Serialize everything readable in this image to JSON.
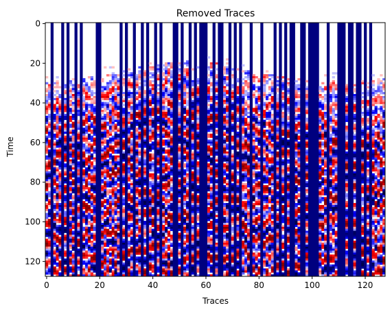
{
  "chart_data": {
    "type": "heatmap",
    "title": "Removed Traces",
    "xlabel": "Traces",
    "ylabel": "Time",
    "xlim": [
      0,
      127
    ],
    "ylim": [
      127,
      0
    ],
    "x_ticks": [
      0,
      20,
      40,
      60,
      80,
      100,
      120
    ],
    "y_ticks": [
      0,
      20,
      40,
      60,
      80,
      100,
      120
    ],
    "colormap": "seismic",
    "colors": {
      "negative": "#00007f",
      "zero": "#ffffff",
      "positive": "#7f0000"
    },
    "grid": false,
    "legend": "none",
    "removed_trace_columns": [
      2,
      6,
      8,
      11,
      13,
      19,
      20,
      28,
      30,
      33,
      36,
      38,
      41,
      43,
      48,
      49,
      51,
      54,
      56,
      58,
      59,
      60,
      63,
      65,
      66,
      69,
      71,
      73,
      77,
      81,
      86,
      88,
      90,
      92,
      93,
      96,
      97,
      99,
      100,
      101,
      102,
      106,
      110,
      111,
      112,
      114,
      115,
      117,
      118,
      120,
      122
    ],
    "removed_trace_value": "strong negative (dark blue)",
    "signal_onset_time_approx": [
      [
        0,
        30
      ],
      [
        10,
        28
      ],
      [
        20,
        26
      ],
      [
        30,
        23
      ],
      [
        40,
        21
      ],
      [
        50,
        19
      ],
      [
        60,
        19
      ],
      [
        70,
        21
      ],
      [
        80,
        25
      ],
      [
        90,
        27
      ],
      [
        100,
        29
      ],
      [
        110,
        29
      ],
      [
        120,
        29
      ],
      [
        127,
        28
      ]
    ]
  }
}
